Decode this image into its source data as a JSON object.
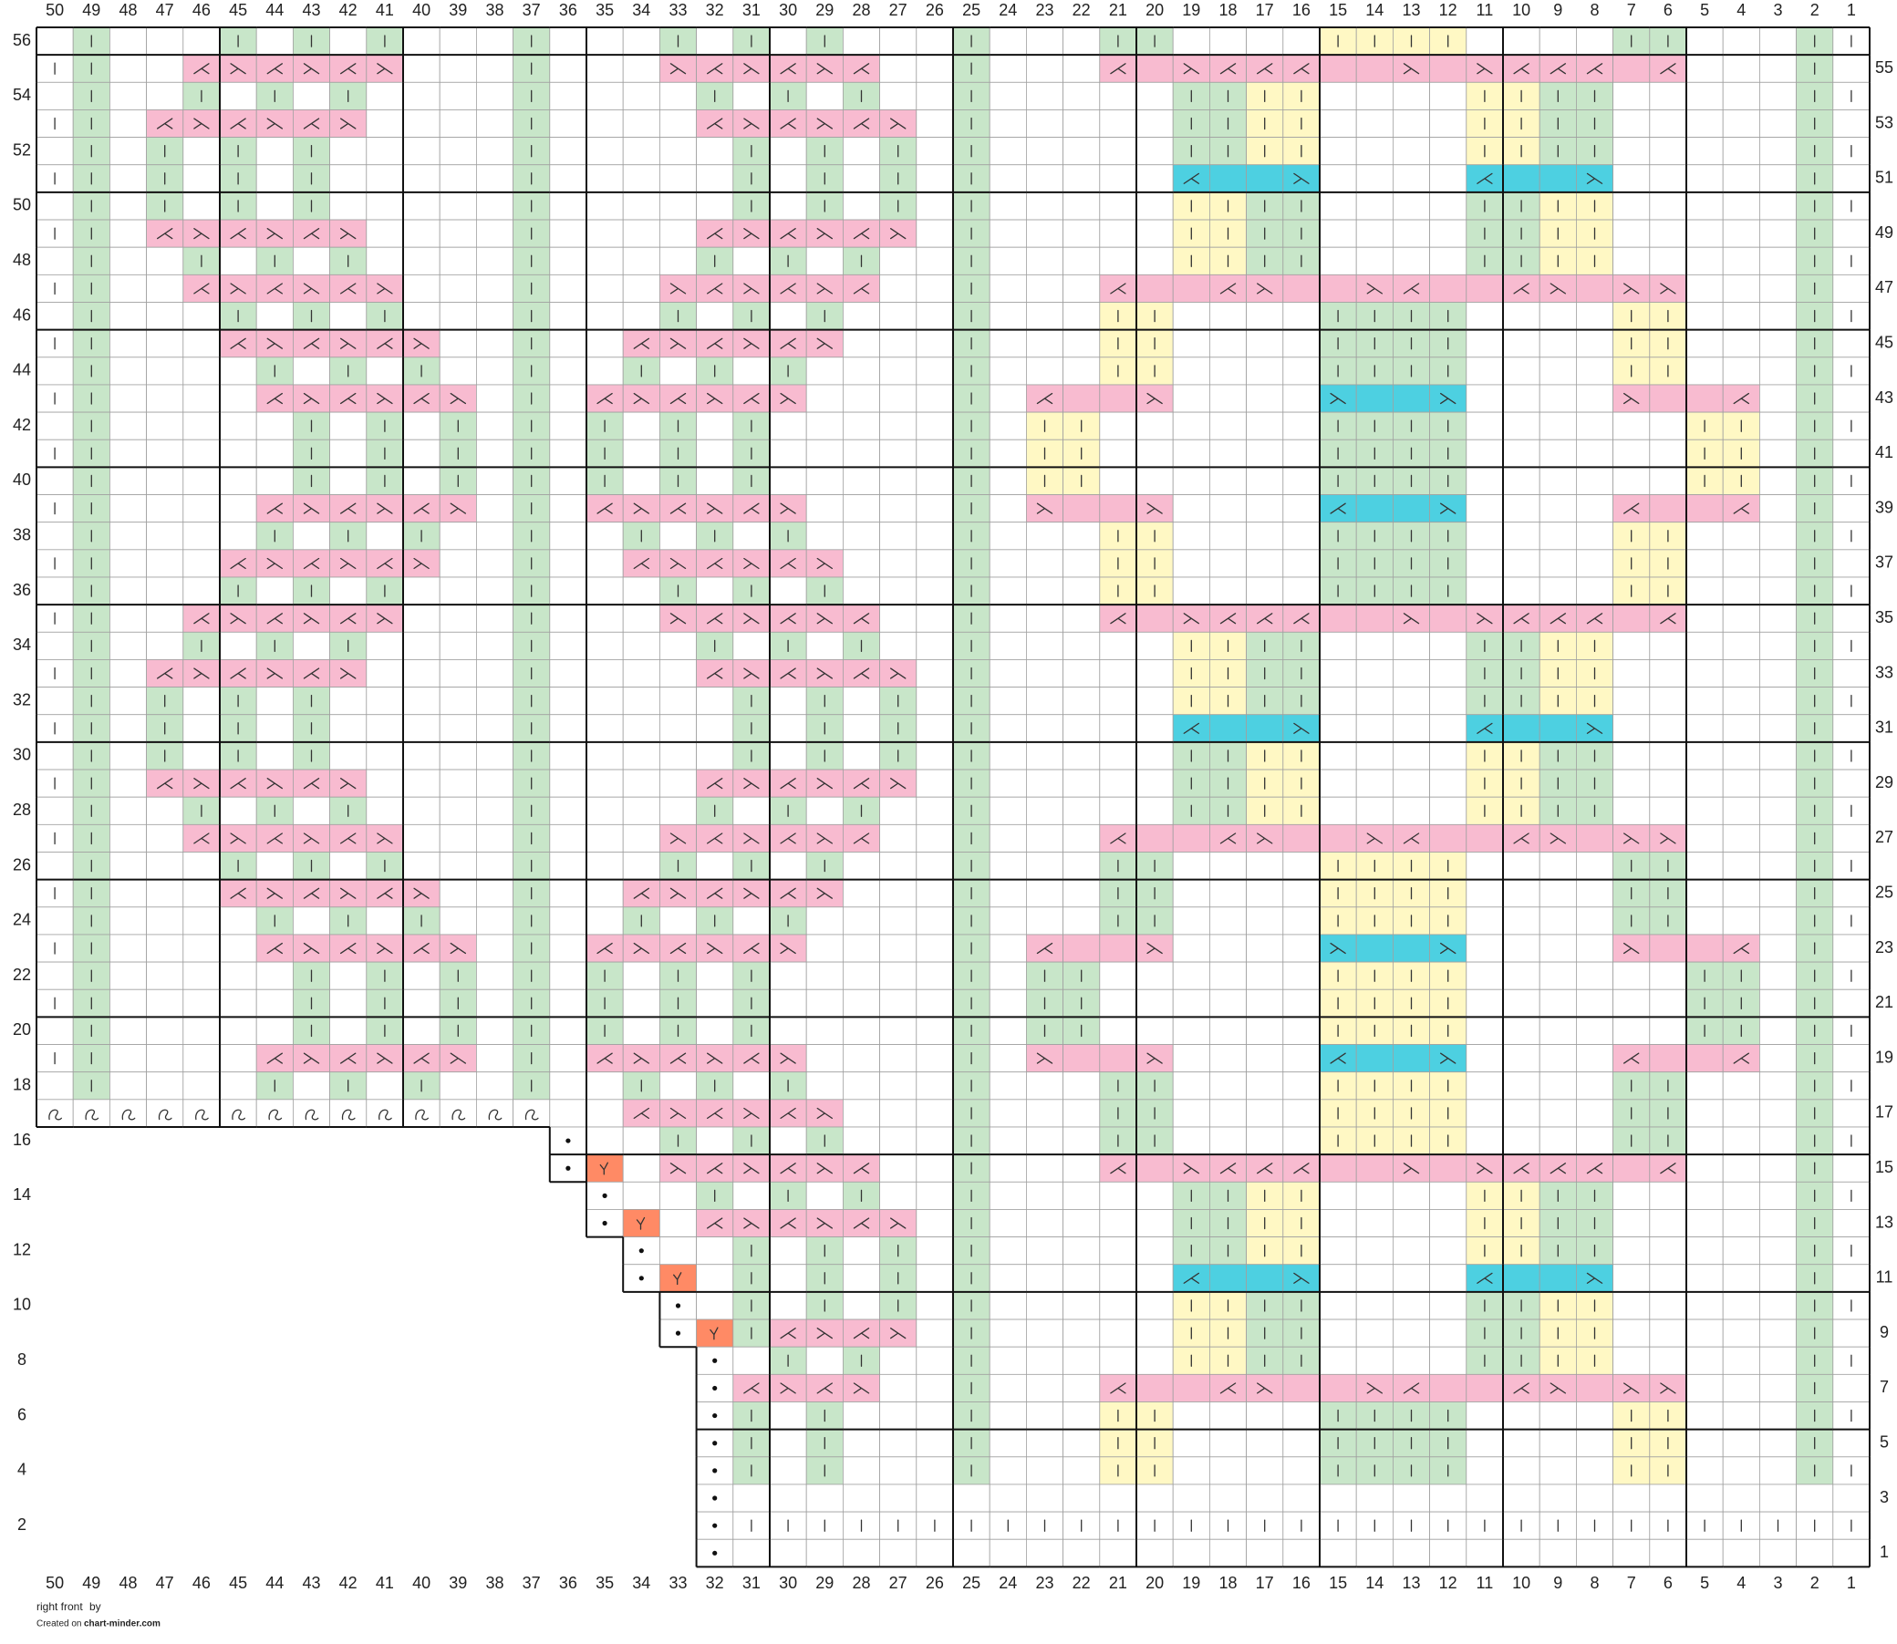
{
  "chart_title": "right front",
  "footer": {
    "by": "by",
    "created": "Created on",
    "site": "chart-minder.com"
  },
  "column_numbers": [
    50,
    49,
    48,
    47,
    46,
    45,
    44,
    43,
    42,
    41,
    40,
    39,
    38,
    37,
    36,
    35,
    34,
    33,
    32,
    31,
    30,
    29,
    28,
    27,
    26,
    25,
    24,
    23,
    22,
    21,
    20,
    19,
    18,
    17,
    16,
    15,
    14,
    13,
    12,
    11,
    10,
    9,
    8,
    7,
    6,
    5,
    4,
    3,
    2,
    1
  ],
  "rows": [
    {
      "number": 56,
      "cells": ".g...g.g.g...g...g.g.g...g...gg....yyyy....gg...gw"
    },
    {
      "number": 55,
      "cells": "wg..rlrlrl...g...lrlrlr..g...rplrrrpplplrrrpr...g."
    },
    {
      "number": 54,
      "cells": ".g..g.g.g....g....g.g.g..g.....ggyy....yygg.....gw"
    },
    {
      "number": 53,
      "cells": "wg.rlrlrl....g....rlrlrl.g.....ggyy....yygg.....g."
    },
    {
      "number": 52,
      "cells": ".g.g.g.g.....g.....g.g.g.g.....ggyy....yygg.....gw"
    },
    {
      "number": 51,
      "cells": "wg.g.g.g.....g.....g.g.g.g.....RbbL....RbbL.....g."
    },
    {
      "number": 50,
      "cells": ".g.g.g.g.....g.....g.g.g.g.....yygg....ggyy.....gw"
    },
    {
      "number": 49,
      "cells": "wg.rlrlrl....g....rlrlrl.g.....yygg....ggyy.....g."
    },
    {
      "number": 48,
      "cells": ".g..g.g.g....g....g.g.g..g.....yygg....ggyy.....gw"
    },
    {
      "number": 47,
      "cells": "wg..rlrlrl...g...lrlrlr..g...rpprlpplrpprlpll...g."
    },
    {
      "number": 46,
      "cells": ".g...g.g.g...g...g.g.g...g...yy....gggg....yy...gw"
    },
    {
      "number": 45,
      "cells": "wg...rlrlrl..g..rlrlrl...g...yy....gggg....yy...g."
    },
    {
      "number": 44,
      "cells": ".g....g.g.g..g..g.g.g....g...yy....gggg....yy...gw"
    },
    {
      "number": 43,
      "cells": "wg....rlrlrl.g.rlrlrl....g.rppl....LbbL....lppr.g."
    },
    {
      "number": 42,
      "cells": ".g.....g.g.g.g.g.g.g.....g.yy......gggg......yy.gw"
    },
    {
      "number": 41,
      "cells": "wg.....g.g.g.g.g.g.g.....g.yy......gggg......yy.g."
    },
    {
      "number": 40,
      "cells": ".g.....g.g.g.g.g.g.g.....g.yy......gggg......yy.gw"
    },
    {
      "number": 39,
      "cells": "wg....rlrlrl.g.rlrlrl....g.lppl....RbbL....rppr.g."
    },
    {
      "number": 38,
      "cells": ".g....g.g.g..g..g.g.g....g...yy....gggg....yy...gw"
    },
    {
      "number": 37,
      "cells": "wg...rlrlrl..g..rlrlrl...g...yy....gggg....yy...g."
    },
    {
      "number": 36,
      "cells": ".g...g.g.g...g...g.g.g...g...yy....gggg....yy...gw"
    },
    {
      "number": 35,
      "cells": "wg..rlrlrl...g...lrlrlr..g...rplrrrpplplrrrpr...g."
    },
    {
      "number": 34,
      "cells": ".g..g.g.g....g....g.g.g..g.....yygg....ggyy.....gw"
    },
    {
      "number": 33,
      "cells": "wg.rlrlrl....g....rlrlrl.g.....yygg....ggyy.....g."
    },
    {
      "number": 32,
      "cells": ".g.g.g.g.....g.....g.g.g.g.....yygg....ggyy.....gw"
    },
    {
      "number": 31,
      "cells": "wg.g.g.g.....g.....g.g.g.g.....RbbL....RbbL.....g."
    },
    {
      "number": 30,
      "cells": ".g.g.g.g.....g.....g.g.g.g.....ggyy....yygg.....gw"
    },
    {
      "number": 29,
      "cells": "wg.rlrlrl....g....rlrlrl.g.....ggyy....yygg.....g."
    },
    {
      "number": 28,
      "cells": ".g..g.g.g....g....g.g.g..g.....ggyy....yygg.....gw"
    },
    {
      "number": 27,
      "cells": "wg..rlrlrl...g...lrlrlr..g...rpprlpplrpprlpll...g."
    },
    {
      "number": 26,
      "cells": ".g...g.g.g...g...g.g.g...g...gg....yyyy....gg...gw"
    },
    {
      "number": 25,
      "cells": "wg...rlrlrl..g..rlrlrl...g...gg....yyyy....gg...g."
    },
    {
      "number": 24,
      "cells": ".g....g.g.g..g..g.g.g....g...gg....yyyy....gg...gw"
    },
    {
      "number": 23,
      "cells": "wg....rlrlrl.g.rlrlrl....g.rppl....LbbL....lppr.g."
    },
    {
      "number": 22,
      "cells": ".g.....g.g.g.g.g.g.g.....g.gg......yyyy......gg.gw"
    },
    {
      "number": 21,
      "cells": "wg.....g.g.g.g.g.g.g.....g.gg......yyyy......gg.g."
    },
    {
      "number": 20,
      "cells": ".g.....g.g.g.g.g.g.g.....g.gg......yyyy......gg.gw"
    },
    {
      "number": 19,
      "cells": "wg....rlrlrl.g.rlrlrl....g.lppl....RbbL....rppr.g."
    },
    {
      "number": 18,
      "cells": ".g....g.g.g..g..g.g.g....g...gg....yyyy....gg...gw"
    },
    {
      "number": 17,
      "cells": "tttttttttttttt..rlrlrl...g...gg....yyyy....gg...g."
    },
    {
      "number": 16,
      "cells": "______________k..g.g.g...g...gg....yyyy....gg...gw"
    },
    {
      "number": 15,
      "cells": "______________ko.lrlrlr..g...rplrrrpplplrrrpr...g."
    },
    {
      "number": 14,
      "cells": "_______________k..g.g.g..g.....ggyy....yygg.....gw"
    },
    {
      "number": 13,
      "cells": "_______________ko.rlrlrl.g.....ggyy....yygg.....g."
    },
    {
      "number": 12,
      "cells": "________________k..g.g.g.g.....ggyy....yygg.....gw"
    },
    {
      "number": 11,
      "cells": "________________ko.g.g.g.g.....RbbL....RbbL.....g."
    },
    {
      "number": 10,
      "cells": "_________________k.g.g.g.g.....yygg....ggyy.....gw"
    },
    {
      "number": 9,
      "cells": "_________________kogrlrl.g.....yygg....ggyy.....g."
    },
    {
      "number": 8,
      "cells": "__________________k.g.g..g.....yygg....ggyy.....gw"
    },
    {
      "number": 7,
      "cells": "__________________krlrl..g...rpprlpplrpprlpll...g."
    },
    {
      "number": 6,
      "cells": "__________________kg.g...g...yy....gggg....yy...gw"
    },
    {
      "number": 5,
      "cells": "__________________kg.g...g...yy....gggg....yy...g."
    },
    {
      "number": 4,
      "cells": "__________________kg.g...g...yy....gggg....yy...gw"
    },
    {
      "number": 3,
      "cells": "__________________k..............................."
    },
    {
      "number": 2,
      "cells": "__________________kwwwwwwwwwwwwwwwwwwwwwwwwwwwwwww"
    },
    {
      "number": 1,
      "cells": "__________________k..............................."
    }
  ]
}
